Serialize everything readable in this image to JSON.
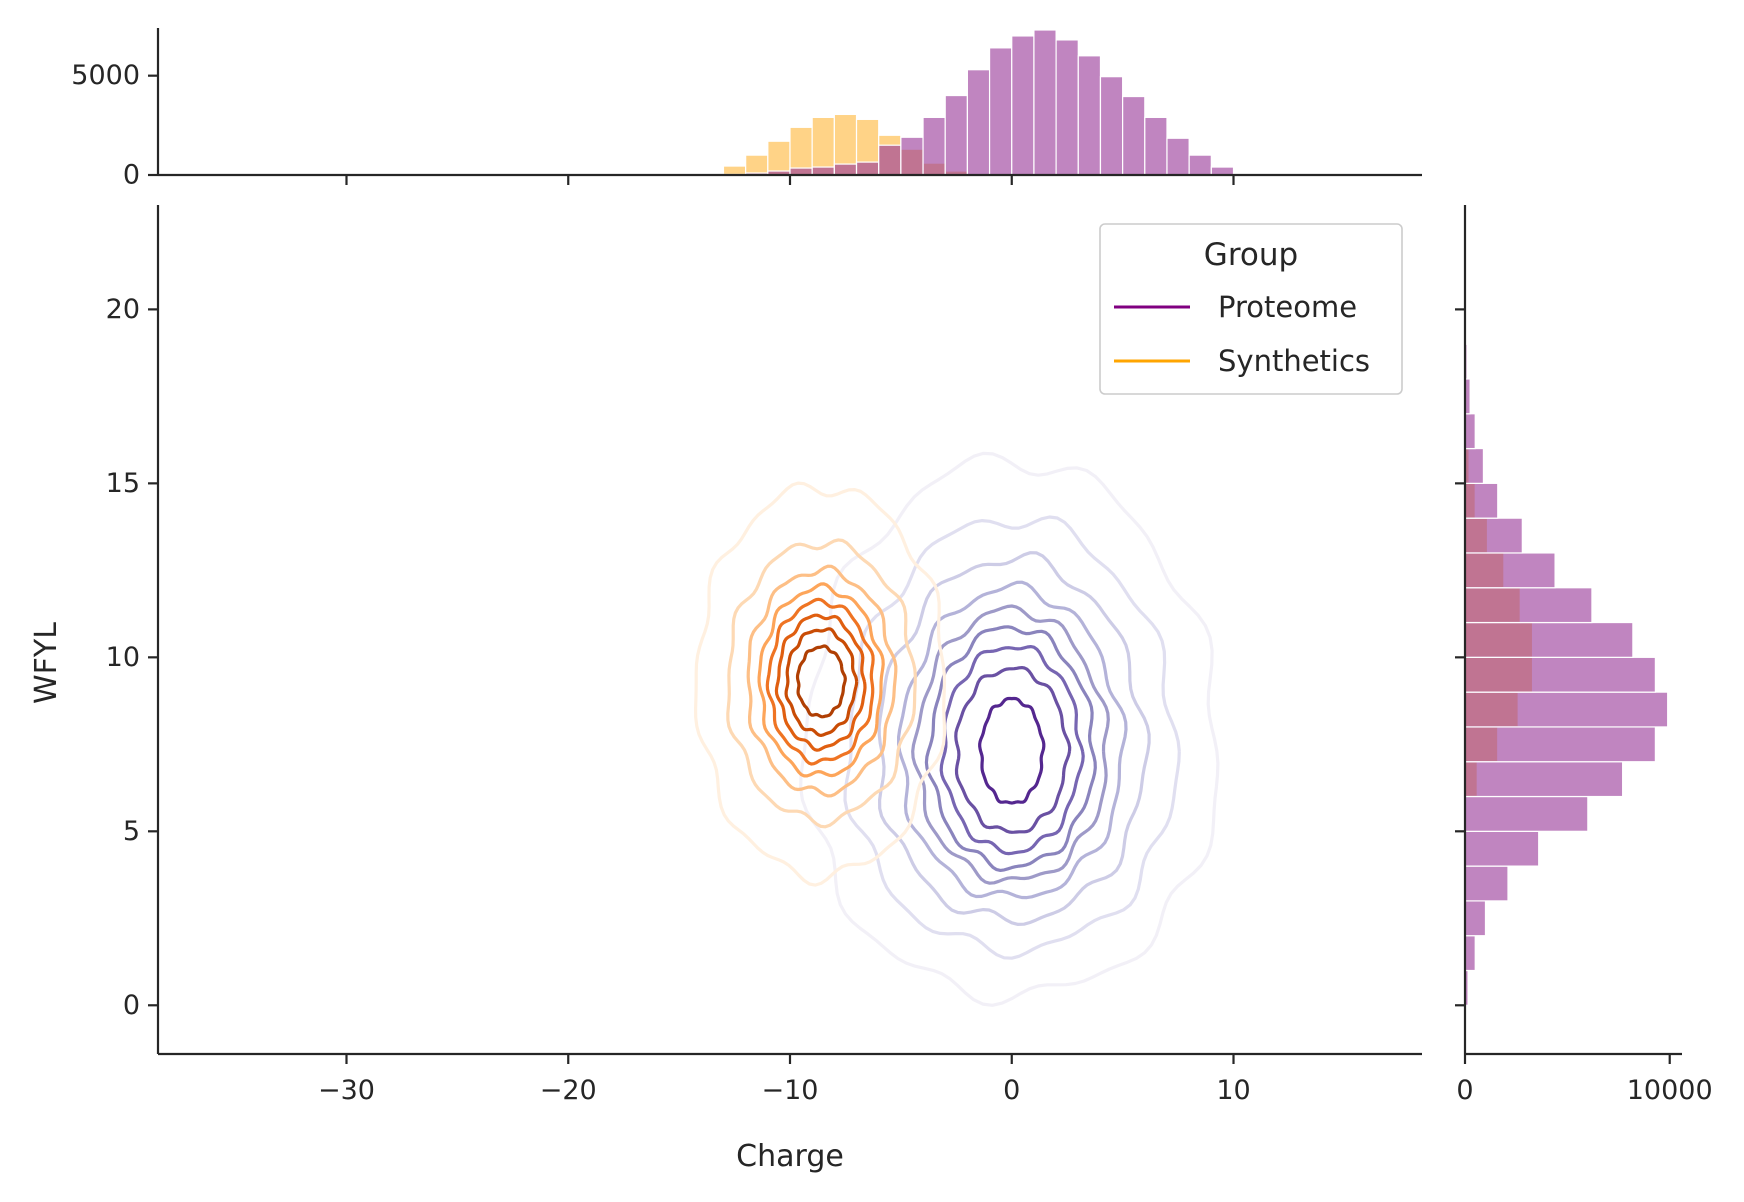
{
  "chart_data": {
    "type": "kde-contour-with-marginal-histograms",
    "xlabel": "Charge",
    "ylabel": "WFYL",
    "xlim": [
      -38.5,
      18.5
    ],
    "ylim": [
      -1.4,
      23
    ],
    "x_ticks": [
      -30,
      -20,
      -10,
      0,
      10
    ],
    "y_ticks": [
      0,
      5,
      10,
      15,
      20
    ],
    "x_tick_labels": [
      "−30",
      "−20",
      "−10",
      "0",
      "10"
    ],
    "y_tick_labels": [
      "0",
      "5",
      "10",
      "15",
      "20"
    ],
    "grid": false,
    "legend": {
      "title": "Group",
      "placement": "top-right",
      "entries": [
        {
          "label": "Proteome",
          "color": "#800080"
        },
        {
          "label": "Synthetics",
          "color": "#FFA500"
        }
      ]
    },
    "kde_contours": [
      {
        "group": "Proteome",
        "colormap": "Purples",
        "center": [
          0,
          7.3
        ],
        "levels": [
          {
            "rx": 1.4,
            "ry": 1.5
          },
          {
            "rx": 2.5,
            "ry": 2.35
          },
          {
            "rx": 3.1,
            "ry": 2.95
          },
          {
            "rx": 3.7,
            "ry": 3.45
          },
          {
            "rx": 4.3,
            "ry": 3.9
          },
          {
            "rx": 5.0,
            "ry": 4.45
          },
          {
            "rx": 6.0,
            "ry": 5.2
          },
          {
            "rx": 7.4,
            "ry": 6.2
          },
          {
            "rx": 9.3,
            "ry": 7.7
          }
        ]
      },
      {
        "group": "Synthetics",
        "colormap": "Oranges",
        "center": [
          -8.6,
          9.3
        ],
        "levels": [
          {
            "rx": 1.05,
            "ry": 1.0
          },
          {
            "rx": 1.55,
            "ry": 1.5
          },
          {
            "rx": 1.95,
            "ry": 1.9
          },
          {
            "rx": 2.35,
            "ry": 2.3
          },
          {
            "rx": 2.75,
            "ry": 2.7
          },
          {
            "rx": 3.3,
            "ry": 3.2
          },
          {
            "rx": 4.2,
            "ry": 4.0
          },
          {
            "rx": 5.6,
            "ry": 5.6
          }
        ]
      }
    ],
    "top_histogram": {
      "ylabel_ticks": [
        0,
        5000
      ],
      "ylim": [
        0,
        7400
      ],
      "bin_edges": [
        -13,
        -12,
        -11,
        -10,
        -9,
        -8,
        -7,
        -6,
        -5,
        -4,
        -3,
        -2,
        -1,
        0,
        1,
        2,
        3,
        4,
        5,
        6,
        7,
        8,
        9,
        10
      ],
      "series": [
        {
          "name": "Synthetics",
          "color": "#FFB83D",
          "counts": [
            450,
            1000,
            1700,
            2400,
            2900,
            3050,
            2800,
            2000,
            1300,
            600,
            200,
            50,
            10,
            0,
            0,
            0,
            0,
            0,
            0,
            0,
            0,
            0,
            0
          ]
        },
        {
          "name": "Proteome",
          "color": "#9A3A9A",
          "counts": [
            30,
            100,
            200,
            350,
            400,
            550,
            650,
            1500,
            1900,
            2900,
            4000,
            5300,
            6400,
            7000,
            7300,
            6800,
            6000,
            4950,
            3950,
            2900,
            1850,
            1000,
            400
          ]
        }
      ]
    },
    "right_histogram": {
      "xlabel_ticks": [
        0,
        10000
      ],
      "xlim": [
        0,
        10600
      ],
      "bin_edges": [
        0,
        1,
        2,
        3,
        4,
        5,
        6,
        7,
        8,
        9,
        10,
        11,
        12,
        13,
        14,
        15,
        16,
        17,
        18,
        19,
        20,
        21,
        22,
        23
      ],
      "series": [
        {
          "name": "Synthetics",
          "color": "#FFB83D",
          "counts": [
            0,
            0,
            0,
            0,
            0,
            0,
            600,
            1600,
            2600,
            3300,
            3300,
            2700,
            1900,
            1100,
            500,
            200,
            50,
            0,
            0,
            0,
            0,
            0,
            0
          ]
        },
        {
          "name": "Proteome",
          "color": "#9A3A9A",
          "counts": [
            150,
            500,
            1000,
            2100,
            3600,
            6000,
            7700,
            9300,
            9900,
            9300,
            8200,
            6200,
            4400,
            2800,
            1600,
            900,
            500,
            250,
            100,
            60,
            40,
            30,
            20
          ]
        }
      ]
    }
  }
}
